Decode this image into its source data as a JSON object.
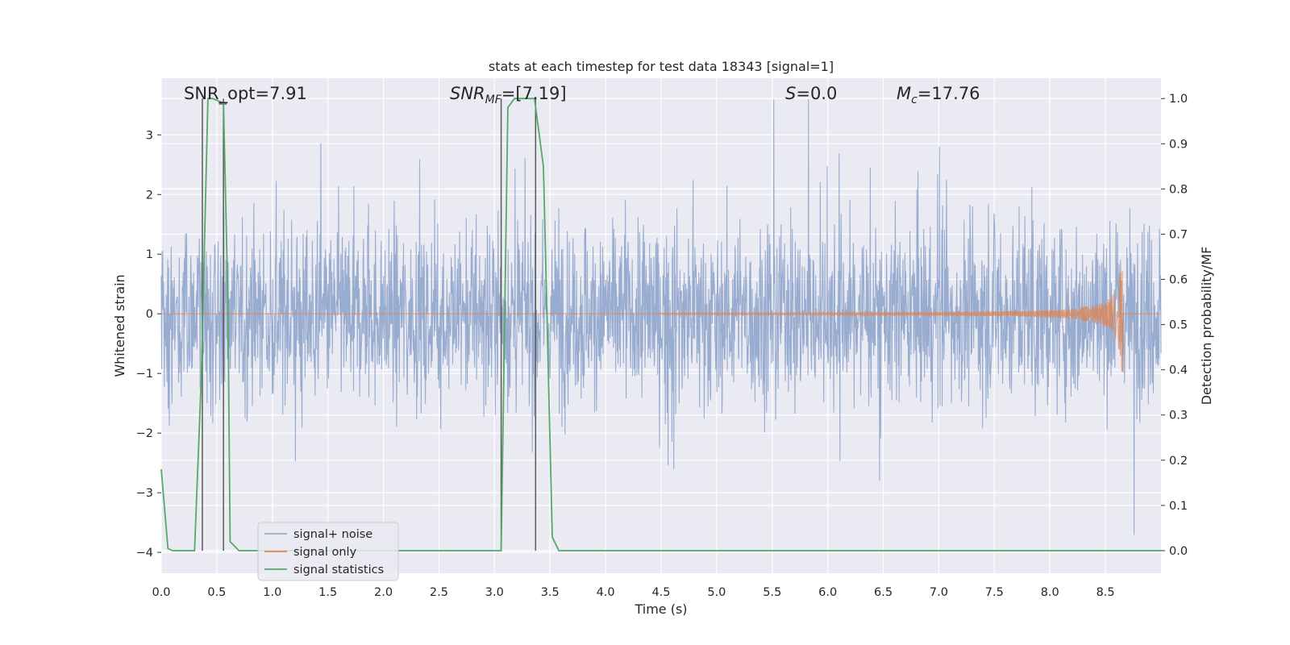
{
  "chart_data": {
    "type": "line",
    "title": "stats at each timestep for test data 18343 [signal=1]",
    "xlabel": "Time (s)",
    "ylabel_left": "Whitened strain",
    "ylabel_right": "Detection probability/MF",
    "xlim": [
      0.0,
      9.0
    ],
    "ylim_left": [
      -4.35,
      3.95
    ],
    "ylim_right": [
      -0.05,
      1.045
    ],
    "x_ticks": [
      "0.0",
      "0.5",
      "1.0",
      "1.5",
      "2.0",
      "2.5",
      "3.0",
      "3.5",
      "4.0",
      "4.5",
      "5.0",
      "5.5",
      "6.0",
      "6.5",
      "7.0",
      "7.5",
      "8.0",
      "8.5"
    ],
    "y_ticks_left": [
      "−4",
      "−3",
      "−2",
      "−1",
      "0",
      "1",
      "2",
      "3"
    ],
    "y_ticks_right": [
      "0.0",
      "0.1",
      "0.2",
      "0.3",
      "0.4",
      "0.5",
      "0.6",
      "0.7",
      "0.8",
      "0.9",
      "1.0"
    ],
    "grid": true,
    "legend_position": "lower-left",
    "annotations": {
      "snr_opt": "SNR_opt=7.91",
      "snr_mf_base": "SNR",
      "snr_mf_sub": "MF",
      "snr_mf_value": "=[7.19]",
      "s_base": "S",
      "s_value": "=0.0",
      "mc_base": "M",
      "mc_sub": "c",
      "mc_value": "=17.76"
    },
    "series": [
      {
        "name": "signal+ noise",
        "color": "#98acd0",
        "axis": "left",
        "description_values": "whitened noise with amplitude approx within [-3.3, 3.6] across 0-9 s"
      },
      {
        "name": "signal only",
        "color": "#dd8452",
        "axis": "left",
        "chirp": {
          "start": 4.5,
          "end": 8.66,
          "final_amplitude": 1.6
        }
      },
      {
        "name": "signal statistics",
        "color": "#55a868",
        "axis": "right",
        "x": [
          0.0,
          0.06,
          0.1,
          0.3,
          0.36,
          0.42,
          0.46,
          0.56,
          0.6,
          0.62,
          0.7,
          3.0,
          3.06,
          3.12,
          3.18,
          3.36,
          3.44,
          3.52,
          3.58,
          9.0
        ],
        "y": [
          0.18,
          0.005,
          0.0,
          0.0,
          0.38,
          1.0,
          1.0,
          0.99,
          0.55,
          0.02,
          0.0,
          0.0,
          0.0,
          0.98,
          1.0,
          1.0,
          0.85,
          0.03,
          0.0,
          0.0
        ]
      }
    ],
    "markers": {
      "color": "#595959",
      "x": [
        0.37,
        0.56,
        3.06,
        3.37
      ],
      "bar_x": [
        0.52,
        0.59
      ]
    }
  }
}
